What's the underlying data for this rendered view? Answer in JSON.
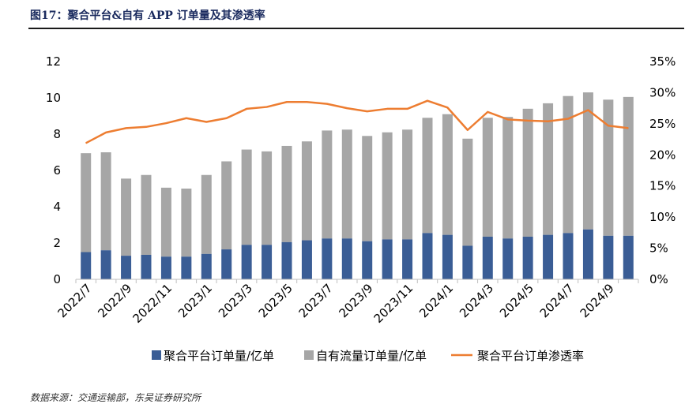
{
  "figure_title": "图17：聚合平台&自有 APP 订单量及其渗透率",
  "source": "数据来源：交通运输部，东吴证券研究所",
  "colors": {
    "aggregate_bar": "#3a5d95",
    "own_flow_bar": "#a6a6a6",
    "penetration_line": "#ed7d31",
    "title_text": "#1a2a5e"
  },
  "chart_data": {
    "type": "bar",
    "stacked": true,
    "categories": [
      "2022/7",
      "2022/8",
      "2022/9",
      "2022/10",
      "2022/11",
      "2022/12",
      "2023/1",
      "2023/2",
      "2023/3",
      "2023/4",
      "2023/5",
      "2023/6",
      "2023/7",
      "2023/8",
      "2023/9",
      "2023/10",
      "2023/11",
      "2023/12",
      "2024/1",
      "2024/2",
      "2024/3",
      "2024/4",
      "2024/5",
      "2024/6",
      "2024/7",
      "2024/8",
      "2024/9",
      "2024/10"
    ],
    "x_tick_labels": [
      "2022/7",
      "2022/9",
      "2022/11",
      "2023/1",
      "2023/3",
      "2023/5",
      "2023/7",
      "2023/9",
      "2023/11",
      "2024/1",
      "2024/3",
      "2024/5",
      "2024/7",
      "2024/9"
    ],
    "series": [
      {
        "name": "聚合平台订单量/亿单",
        "type": "bar",
        "axis": "left",
        "values": [
          1.5,
          1.6,
          1.3,
          1.35,
          1.25,
          1.25,
          1.4,
          1.65,
          1.9,
          1.9,
          2.05,
          2.15,
          2.25,
          2.25,
          2.1,
          2.2,
          2.2,
          2.55,
          2.45,
          1.85,
          2.35,
          2.25,
          2.35,
          2.45,
          2.55,
          2.75,
          2.4,
          2.4
        ]
      },
      {
        "name": "自有流量订单量/亿单",
        "type": "bar",
        "axis": "left",
        "values": [
          5.45,
          5.4,
          4.25,
          4.4,
          3.8,
          3.75,
          4.35,
          4.85,
          5.25,
          5.15,
          5.3,
          5.45,
          5.95,
          6.0,
          5.8,
          5.9,
          6.05,
          6.35,
          6.65,
          5.9,
          6.55,
          6.7,
          7.05,
          7.25,
          7.55,
          7.55,
          7.5,
          7.65
        ]
      },
      {
        "name": "聚合平台订单渗透率",
        "type": "line",
        "axis": "right",
        "values": [
          21.9,
          23.6,
          24.3,
          24.5,
          25.1,
          25.9,
          25.3,
          25.9,
          27.4,
          27.7,
          28.5,
          28.5,
          28.2,
          27.5,
          27.0,
          27.4,
          27.4,
          28.7,
          27.6,
          24.0,
          26.9,
          25.7,
          25.5,
          25.4,
          25.8,
          27.2,
          24.7,
          24.3
        ]
      }
    ],
    "left_axis": {
      "ticks": [
        "0",
        "2",
        "4",
        "6",
        "8",
        "10",
        "12"
      ],
      "ylim": [
        0,
        12
      ]
    },
    "right_axis": {
      "ticks": [
        "0%",
        "5%",
        "10%",
        "15%",
        "20%",
        "25%",
        "30%",
        "35%"
      ],
      "ylim": [
        0,
        35
      ]
    },
    "legend": {
      "position": "bottom",
      "labels": [
        "聚合平台订单量/亿单",
        "自有流量订单量/亿单",
        "聚合平台订单渗透率"
      ]
    },
    "grid": false
  }
}
